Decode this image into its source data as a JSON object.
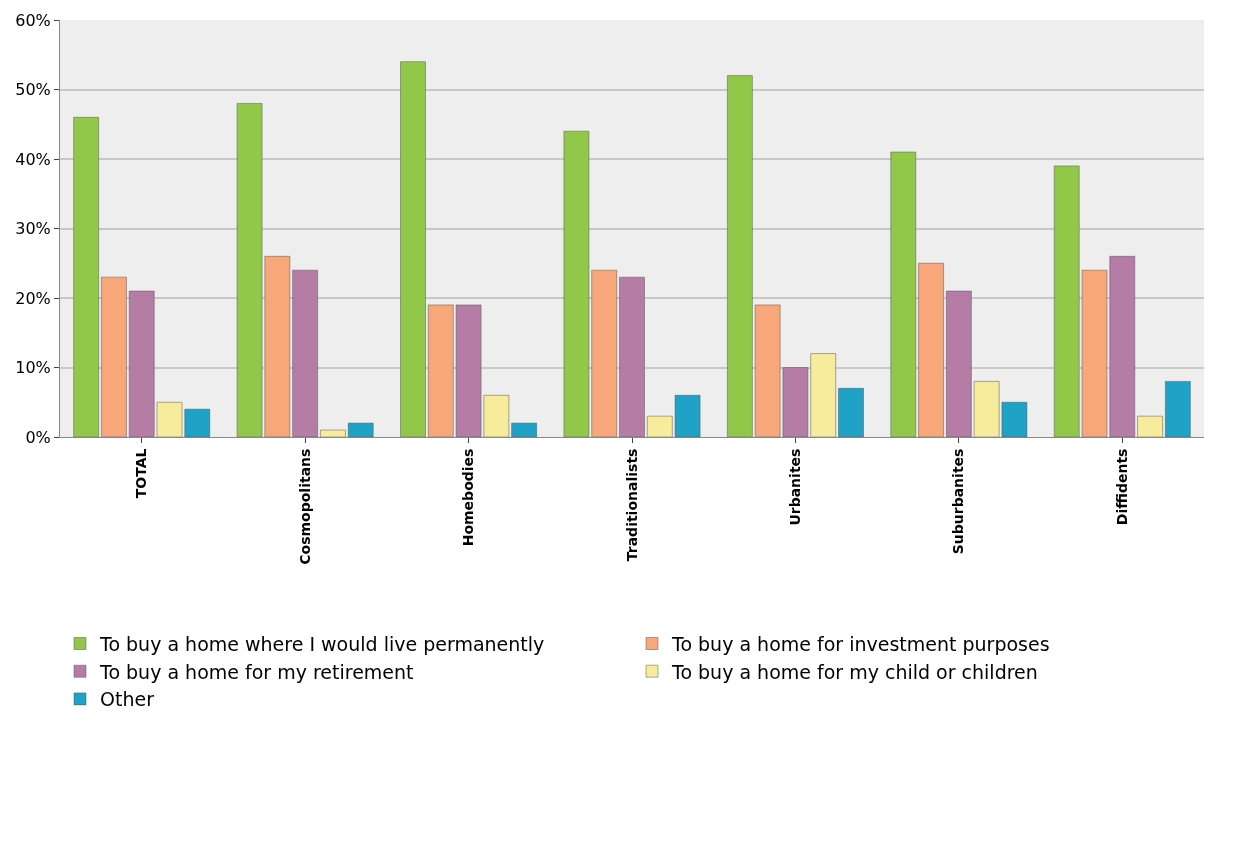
{
  "chart_data": {
    "type": "bar",
    "categories": [
      "TOTAL",
      "Cosmopolitans",
      "Homebodies",
      "Traditionalists",
      "Urbanites",
      "Suburbanites",
      "Diffidents"
    ],
    "series": [
      {
        "name": "To buy a home where I would live permanently",
        "color": "#92c84a",
        "values": [
          46,
          48,
          54,
          44,
          52,
          41,
          39
        ]
      },
      {
        "name": "To buy a home for investment purposes",
        "color": "#f7a77a",
        "values": [
          23,
          26,
          19,
          24,
          19,
          25,
          24
        ]
      },
      {
        "name": "To buy a home for my retirement",
        "color": "#b57ca5",
        "values": [
          21,
          24,
          19,
          23,
          10,
          21,
          26
        ]
      },
      {
        "name": "To buy a home for my child or children",
        "color": "#f7ec9c",
        "values": [
          5,
          1,
          6,
          3,
          12,
          8,
          3
        ]
      },
      {
        "name": "Other",
        "color": "#1ea3c6",
        "values": [
          4,
          2,
          2,
          6,
          7,
          5,
          8
        ]
      }
    ],
    "ylim": [
      0,
      60
    ],
    "yticks": [
      {
        "value": 0,
        "label": "0%"
      },
      {
        "value": 10,
        "label": "10%"
      },
      {
        "value": 20,
        "label": "20%"
      },
      {
        "value": 30,
        "label": "30%"
      },
      {
        "value": 40,
        "label": "40%"
      },
      {
        "value": 50,
        "label": "50%"
      },
      {
        "value": 60,
        "label": "60%"
      }
    ],
    "grid": "y",
    "legend": "bottom"
  }
}
